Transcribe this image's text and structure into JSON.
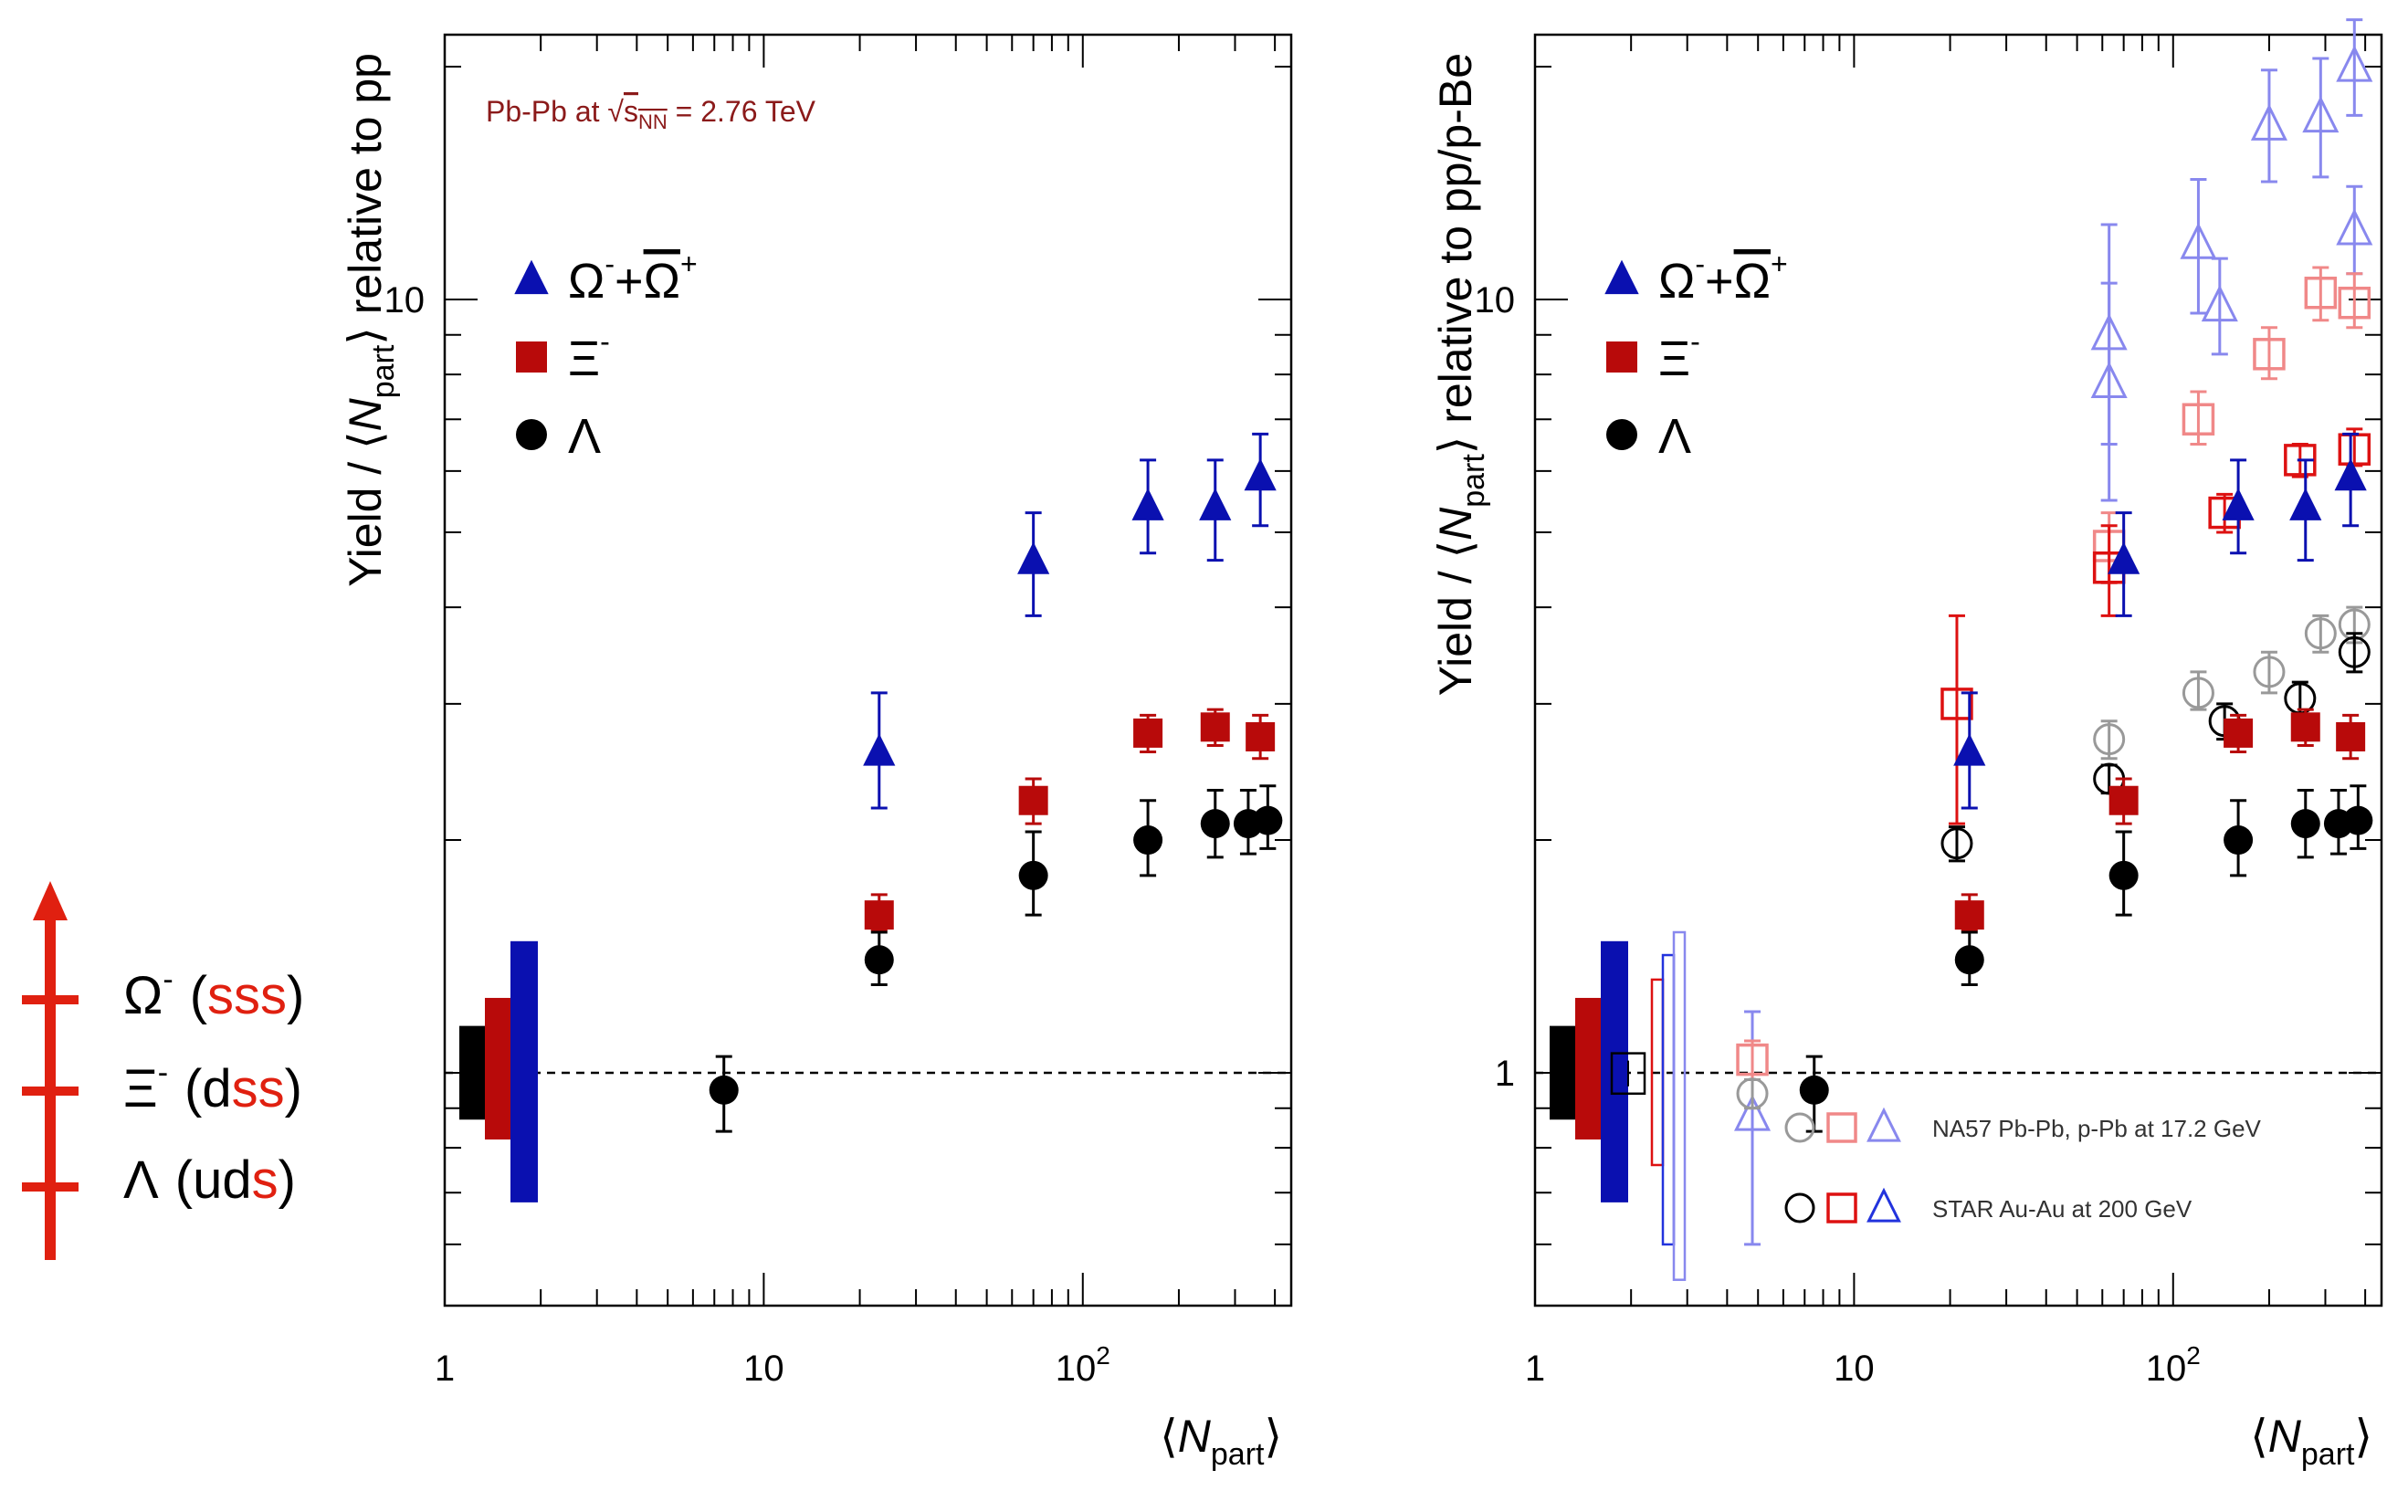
{
  "strangeness_legend": {
    "items": [
      {
        "symbol": "Ω",
        "charge": "-",
        "open": "(",
        "quarks": [
          {
            "q": "s",
            "strange": true
          },
          {
            "q": "s",
            "strange": true
          },
          {
            "q": "s",
            "strange": true
          }
        ],
        "close": ")"
      },
      {
        "symbol": "Ξ",
        "charge": "-",
        "open": "(",
        "quarks": [
          {
            "q": "d",
            "strange": false
          },
          {
            "q": "s",
            "strange": true
          },
          {
            "q": "s",
            "strange": true
          }
        ],
        "close": ")"
      },
      {
        "symbol": "Λ",
        "charge": "",
        "open": "(",
        "quarks": [
          {
            "q": "u",
            "strange": false
          },
          {
            "q": "d",
            "strange": false
          },
          {
            "q": "s",
            "strange": true
          }
        ],
        "close": ")"
      }
    ],
    "arrow_color": "#e02010",
    "strange_color": "#e02010"
  },
  "colors": {
    "omega": "#0a10b0",
    "xi": "#b80a0a",
    "lambda": "#000000",
    "na57_omega": "#8888ee",
    "na57_xi": "#f08888",
    "na57_lambda": "#999999",
    "star_omega": "#2233dd",
    "star_xi": "#dd1111",
    "star_lambda": "#000000",
    "annotation": "#8b1a1a"
  },
  "chart_data": [
    {
      "type": "scatter",
      "xscale": "log",
      "yscale": "log",
      "xlim": [
        1,
        450
      ],
      "ylim": [
        0.5,
        22
      ],
      "annotation": {
        "prefix": "Pb-Pb at ",
        "sqrt_var": "s",
        "sqrt_sub": "NN",
        "suffix": " = 2.76 TeV"
      },
      "ylabel": {
        "pre": "Yield / ⟨",
        "var": "N",
        "sub": "part",
        "post": "⟩ relative to pp"
      },
      "xlabel": {
        "pre": "⟨",
        "var": "N",
        "sub": "part",
        "post": "⟩"
      },
      "x_tick_labels": [
        {
          "value": 1,
          "text": "1"
        },
        {
          "value": 10,
          "text": "10"
        },
        {
          "value": 100,
          "base": "10",
          "exp": "2"
        }
      ],
      "y_tick_labels": [
        {
          "value": 10,
          "text": "10"
        }
      ],
      "reference_line": 1,
      "legend": [
        {
          "key": "omega",
          "marker": "triangle",
          "label_parts": [
            "Ω",
            "-",
            "+",
            "Ω",
            "+"
          ]
        },
        {
          "key": "xi",
          "marker": "square",
          "label_parts": [
            "Ξ",
            "-"
          ]
        },
        {
          "key": "lambda",
          "marker": "circle",
          "label_parts": [
            "Λ"
          ]
        }
      ],
      "norm_boxes": [
        {
          "key": "lambda",
          "lo": 0.87,
          "hi": 1.15
        },
        {
          "key": "xi",
          "lo": 0.82,
          "hi": 1.25
        },
        {
          "key": "omega",
          "lo": 0.68,
          "hi": 1.48
        }
      ],
      "series": [
        {
          "name": "Ω- + Ω+",
          "key": "omega",
          "marker": "triangle",
          "filled": true,
          "points": [
            {
              "x": 23,
              "y": 2.6,
              "lo": 2.2,
              "hi": 3.1
            },
            {
              "x": 70,
              "y": 4.6,
              "lo": 3.9,
              "hi": 5.3
            },
            {
              "x": 160,
              "y": 5.4,
              "lo": 4.7,
              "hi": 6.2
            },
            {
              "x": 260,
              "y": 5.4,
              "lo": 4.6,
              "hi": 6.2
            },
            {
              "x": 360,
              "y": 5.9,
              "lo": 5.1,
              "hi": 6.7
            }
          ]
        },
        {
          "name": "Ξ-",
          "key": "xi",
          "marker": "square",
          "filled": true,
          "points": [
            {
              "x": 23,
              "y": 1.6,
              "lo": 1.53,
              "hi": 1.7
            },
            {
              "x": 70,
              "y": 2.25,
              "lo": 2.1,
              "hi": 2.4
            },
            {
              "x": 160,
              "y": 2.75,
              "lo": 2.6,
              "hi": 2.9
            },
            {
              "x": 260,
              "y": 2.8,
              "lo": 2.65,
              "hi": 2.95
            },
            {
              "x": 360,
              "y": 2.72,
              "lo": 2.55,
              "hi": 2.9
            }
          ]
        },
        {
          "name": "Λ",
          "key": "lambda",
          "marker": "circle",
          "filled": true,
          "points": [
            {
              "x": 7.5,
              "y": 0.95,
              "lo": 0.84,
              "hi": 1.05
            },
            {
              "x": 23,
              "y": 1.4,
              "lo": 1.3,
              "hi": 1.52
            },
            {
              "x": 70,
              "y": 1.8,
              "lo": 1.6,
              "hi": 2.05
            },
            {
              "x": 160,
              "y": 2.0,
              "lo": 1.8,
              "hi": 2.25
            },
            {
              "x": 260,
              "y": 2.1,
              "lo": 1.9,
              "hi": 2.32
            },
            {
              "x": 330,
              "y": 2.1,
              "lo": 1.92,
              "hi": 2.32
            },
            {
              "x": 380,
              "y": 2.12,
              "lo": 1.95,
              "hi": 2.35
            }
          ]
        }
      ]
    },
    {
      "type": "scatter",
      "xscale": "log",
      "yscale": "log",
      "xlim": [
        1,
        450
      ],
      "ylim": [
        0.5,
        22
      ],
      "ylabel": {
        "pre": "Yield / ⟨",
        "var": "N",
        "sub": "part",
        "post": "⟩ relative to pp/p-Be"
      },
      "xlabel": {
        "pre": "⟨",
        "var": "N",
        "sub": "part",
        "post": "⟩"
      },
      "x_tick_labels": [
        {
          "value": 1,
          "text": "1"
        },
        {
          "value": 10,
          "text": "10"
        },
        {
          "value": 100,
          "base": "10",
          "exp": "2"
        }
      ],
      "y_tick_labels": [
        {
          "value": 10,
          "text": "10"
        },
        {
          "value": 1,
          "text": "1"
        }
      ],
      "reference_line": 1,
      "legend": [
        {
          "key": "omega",
          "marker": "triangle",
          "label_parts": [
            "Ω",
            "-",
            "+",
            "Ω",
            "+"
          ]
        },
        {
          "key": "xi",
          "marker": "square",
          "label_parts": [
            "Ξ",
            "-"
          ]
        },
        {
          "key": "lambda",
          "marker": "circle",
          "label_parts": [
            "Λ"
          ]
        }
      ],
      "open_legend": [
        {
          "label": "NA57 Pb-Pb, p-Pb at 17.2 GeV",
          "keys": [
            "na57_lambda",
            "na57_xi",
            "na57_omega"
          ]
        },
        {
          "label": "STAR Au-Au at 200 GeV",
          "keys": [
            "star_lambda",
            "star_xi",
            "star_omega"
          ]
        }
      ],
      "norm_boxes": [
        {
          "key": "lambda",
          "lo": 0.87,
          "hi": 1.15
        },
        {
          "key": "xi",
          "lo": 0.82,
          "hi": 1.25
        },
        {
          "key": "omega",
          "lo": 0.68,
          "hi": 1.48
        }
      ],
      "open_norm_boxes": [
        {
          "key": "star_lambda",
          "lo": 0.94,
          "hi": 1.06
        },
        {
          "key": "star_xi",
          "lo": 0.76,
          "hi": 1.32
        },
        {
          "key": "star_omega",
          "lo": 0.6,
          "hi": 1.42
        },
        {
          "key": "na57_omega",
          "lo": 0.54,
          "hi": 1.52
        }
      ],
      "series": [
        {
          "name": "Ω- + Ω+",
          "key": "omega",
          "marker": "triangle",
          "filled": true,
          "points": [
            {
              "x": 23,
              "y": 2.6,
              "lo": 2.2,
              "hi": 3.1
            },
            {
              "x": 70,
              "y": 4.6,
              "lo": 3.9,
              "hi": 5.3
            },
            {
              "x": 160,
              "y": 5.4,
              "lo": 4.7,
              "hi": 6.2
            },
            {
              "x": 260,
              "y": 5.4,
              "lo": 4.6,
              "hi": 6.2
            },
            {
              "x": 360,
              "y": 5.9,
              "lo": 5.1,
              "hi": 6.7
            }
          ]
        },
        {
          "name": "Ξ-",
          "key": "xi",
          "marker": "square",
          "filled": true,
          "points": [
            {
              "x": 23,
              "y": 1.6,
              "lo": 1.53,
              "hi": 1.7
            },
            {
              "x": 70,
              "y": 2.25,
              "lo": 2.1,
              "hi": 2.4
            },
            {
              "x": 160,
              "y": 2.75,
              "lo": 2.6,
              "hi": 2.9
            },
            {
              "x": 260,
              "y": 2.8,
              "lo": 2.65,
              "hi": 2.95
            },
            {
              "x": 360,
              "y": 2.72,
              "lo": 2.55,
              "hi": 2.9
            }
          ]
        },
        {
          "name": "Λ",
          "key": "lambda",
          "marker": "circle",
          "filled": true,
          "points": [
            {
              "x": 7.5,
              "y": 0.95,
              "lo": 0.84,
              "hi": 1.05
            },
            {
              "x": 23,
              "y": 1.4,
              "lo": 1.3,
              "hi": 1.52
            },
            {
              "x": 70,
              "y": 1.8,
              "lo": 1.6,
              "hi": 2.05
            },
            {
              "x": 160,
              "y": 2.0,
              "lo": 1.8,
              "hi": 2.25
            },
            {
              "x": 260,
              "y": 2.1,
              "lo": 1.9,
              "hi": 2.32
            },
            {
              "x": 330,
              "y": 2.1,
              "lo": 1.92,
              "hi": 2.32
            },
            {
              "x": 380,
              "y": 2.12,
              "lo": 1.95,
              "hi": 2.35
            }
          ]
        },
        {
          "name": "NA57 Ω",
          "key": "na57_omega",
          "marker": "triangle",
          "filled": false,
          "points": [
            {
              "x": 4.8,
              "y": 0.88,
              "lo": 0.6,
              "hi": 1.2
            },
            {
              "x": 63,
              "y": 9.0,
              "lo": 6.5,
              "hi": 12.5
            },
            {
              "x": 63,
              "y": 7.8,
              "lo": 5.5,
              "hi": 10.5
            },
            {
              "x": 120,
              "y": 11.8,
              "lo": 9.6,
              "hi": 14.3
            },
            {
              "x": 140,
              "y": 9.8,
              "lo": 8.5,
              "hi": 11.3
            },
            {
              "x": 200,
              "y": 16.8,
              "lo": 14.2,
              "hi": 19.8
            },
            {
              "x": 290,
              "y": 17.2,
              "lo": 14.4,
              "hi": 20.5
            },
            {
              "x": 370,
              "y": 20.0,
              "lo": 17.3,
              "hi": 23.0
            },
            {
              "x": 370,
              "y": 12.3,
              "lo": 10.8,
              "hi": 14.0
            }
          ]
        },
        {
          "name": "NA57 Ξ",
          "key": "na57_xi",
          "marker": "square",
          "filled": false,
          "points": [
            {
              "x": 4.8,
              "y": 1.04,
              "lo": 0.98,
              "hi": 1.1
            },
            {
              "x": 63,
              "y": 4.8,
              "lo": 4.3,
              "hi": 5.3
            },
            {
              "x": 120,
              "y": 7.0,
              "lo": 6.5,
              "hi": 7.6
            },
            {
              "x": 200,
              "y": 8.5,
              "lo": 7.9,
              "hi": 9.2
            },
            {
              "x": 290,
              "y": 10.2,
              "lo": 9.4,
              "hi": 11.0
            },
            {
              "x": 370,
              "y": 9.9,
              "lo": 9.2,
              "hi": 10.8
            }
          ]
        },
        {
          "name": "NA57 Λ",
          "key": "na57_lambda",
          "marker": "circle",
          "filled": false,
          "points": [
            {
              "x": 4.8,
              "y": 0.94,
              "lo": 0.9,
              "hi": 0.98
            },
            {
              "x": 63,
              "y": 2.7,
              "lo": 2.55,
              "hi": 2.85
            },
            {
              "x": 120,
              "y": 3.1,
              "lo": 2.95,
              "hi": 3.3
            },
            {
              "x": 200,
              "y": 3.3,
              "lo": 3.1,
              "hi": 3.5
            },
            {
              "x": 290,
              "y": 3.7,
              "lo": 3.5,
              "hi": 3.9
            },
            {
              "x": 370,
              "y": 3.8,
              "lo": 3.6,
              "hi": 4.0
            }
          ]
        },
        {
          "name": "STAR Ω",
          "key": "star_omega",
          "marker": "triangle",
          "filled": false,
          "points": []
        },
        {
          "name": "STAR Ξ",
          "key": "star_xi",
          "marker": "square",
          "filled": false,
          "points": [
            {
              "x": 21,
              "y": 3.0,
              "lo": 2.1,
              "hi": 3.9
            },
            {
              "x": 63,
              "y": 4.5,
              "lo": 3.9,
              "hi": 5.1
            },
            {
              "x": 145,
              "y": 5.3,
              "lo": 5.0,
              "hi": 5.6
            },
            {
              "x": 250,
              "y": 6.2,
              "lo": 5.9,
              "hi": 6.5
            },
            {
              "x": 370,
              "y": 6.4,
              "lo": 6.1,
              "hi": 6.8
            }
          ]
        },
        {
          "name": "STAR Λ",
          "key": "star_lambda",
          "marker": "circle",
          "filled": false,
          "points": [
            {
              "x": 21,
              "y": 1.98,
              "lo": 1.88,
              "hi": 2.08
            },
            {
              "x": 63,
              "y": 2.4,
              "lo": 2.3,
              "hi": 2.5
            },
            {
              "x": 145,
              "y": 2.85,
              "lo": 2.7,
              "hi": 3.0
            },
            {
              "x": 250,
              "y": 3.05,
              "lo": 2.9,
              "hi": 3.2
            },
            {
              "x": 370,
              "y": 3.5,
              "lo": 3.3,
              "hi": 3.7
            }
          ]
        }
      ]
    }
  ]
}
